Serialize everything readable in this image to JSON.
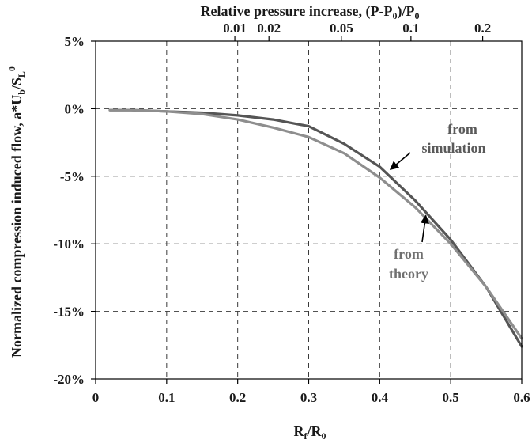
{
  "chart_data": {
    "type": "line",
    "title": "",
    "xlabel": "R",
    "xlabel_sub1": "f",
    "xlabel_mid": "/R",
    "xlabel_sub2": "0",
    "xlim": [
      0,
      0.6
    ],
    "x_ticks": [
      0,
      0.1,
      0.2,
      0.3,
      0.4,
      0.5,
      0.6
    ],
    "x_tick_labels": [
      "0",
      "0.1",
      "0.2",
      "0.3",
      "0.4",
      "0.5",
      "0.6"
    ],
    "ylabel": "Normalized compression induced flow, a*U",
    "ylabel_sub1": "b",
    "ylabel_mid": "/S",
    "ylabel_sub2": "L",
    "ylabel_sup": "0",
    "ylim": [
      -0.2,
      0.05
    ],
    "y_ticks": [
      0.05,
      0,
      -0.05,
      -0.1,
      -0.15,
      -0.2
    ],
    "y_tick_labels": [
      "5%",
      "0%",
      "-5%",
      "-10%",
      "-15%",
      "-20%"
    ],
    "top_axis": {
      "label_a": "Relative pressure increase, (P-P",
      "label_sub1": "0",
      "label_b": ")/P",
      "label_sub2": "0",
      "ticks_at_x": [
        0.196,
        0.244,
        0.346,
        0.444,
        0.545
      ],
      "tick_labels": [
        "0.01",
        "0.02",
        "0.05",
        "0.1",
        "0.2"
      ]
    },
    "grid": true,
    "series": [
      {
        "color": "#555555",
        "x": [
          0.02,
          0.05,
          0.1,
          0.15,
          0.2,
          0.25,
          0.3,
          0.35,
          0.4,
          0.45,
          0.5,
          0.55,
          0.6
        ],
        "y": [
          -0.001,
          -0.001,
          -0.002,
          -0.003,
          -0.005,
          -0.008,
          -0.013,
          -0.026,
          -0.043,
          -0.068,
          -0.097,
          -0.132,
          -0.176
        ]
      },
      {
        "color": "#8e8e8e",
        "x": [
          0.02,
          0.05,
          0.1,
          0.15,
          0.2,
          0.25,
          0.3,
          0.35,
          0.4,
          0.45,
          0.5,
          0.55,
          0.6
        ],
        "y": [
          -0.001,
          -0.001,
          -0.002,
          -0.004,
          -0.008,
          -0.014,
          -0.021,
          -0.033,
          -0.051,
          -0.073,
          -0.1,
          -0.132,
          -0.17
        ]
      }
    ],
    "annotations": [
      {
        "text_line1": "from",
        "text_line2": "simulation",
        "arrow_to": [
          0.415,
          -0.045
        ]
      },
      {
        "text_line1": "from",
        "text_line2": "theory",
        "arrow_to": [
          0.465,
          -0.079
        ]
      }
    ]
  }
}
